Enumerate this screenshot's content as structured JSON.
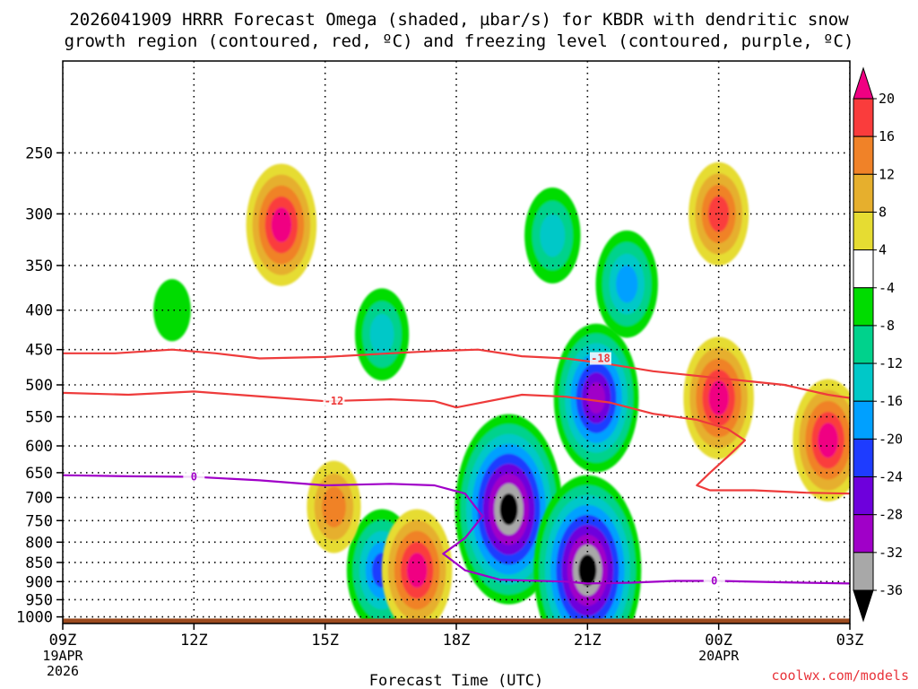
{
  "title": {
    "line1": "2026041909 HRRR Forecast Omega (shaded, µbar/s) for KBDR with dendritic snow",
    "line2": "growth region (contoured, red, ºC) and freezing level (contoured, purple, ºC)"
  },
  "credit": "coolwx.com/models",
  "chart_data": {
    "type": "heatmap",
    "title": "2026041909 HRRR Forecast Omega (shaded, µbar/s) for KBDR with dendritic snow growth region (contoured, red, ºC) and freezing level (contoured, purple, ºC)",
    "xlabel": "Forecast Time (UTC)",
    "ylabel": "",
    "x_range_hours": [
      0,
      18
    ],
    "x_ticks": [
      {
        "hour": 0,
        "label": "09Z",
        "date": "19APR",
        "year": "2026"
      },
      {
        "hour": 3,
        "label": "12Z"
      },
      {
        "hour": 6,
        "label": "15Z"
      },
      {
        "hour": 9,
        "label": "18Z"
      },
      {
        "hour": 12,
        "label": "21Z"
      },
      {
        "hour": 15,
        "label": "00Z",
        "date": "20APR"
      },
      {
        "hour": 18,
        "label": "03Z"
      }
    ],
    "y_axis": {
      "variable": "pressure_hPa",
      "range": [
        1020,
        190
      ],
      "ticks": [
        250,
        300,
        350,
        400,
        450,
        500,
        550,
        600,
        650,
        700,
        750,
        800,
        850,
        900,
        950,
        1000
      ]
    },
    "colorbar": {
      "levels": [
        -36,
        -32,
        -28,
        -24,
        -20,
        -16,
        -12,
        -8,
        -4,
        4,
        8,
        12,
        16,
        20
      ],
      "bins": [
        {
          "range": "< -36",
          "color": "#000000"
        },
        {
          "range": "-36 to -32",
          "color": "#a8a8a8"
        },
        {
          "range": "-32 to -28",
          "color": "#a000c8"
        },
        {
          "range": "-28 to -24",
          "color": "#6e00dc"
        },
        {
          "range": "-24 to -20",
          "color": "#1e3cff"
        },
        {
          "range": "-20 to -16",
          "color": "#00a0ff"
        },
        {
          "range": "-16 to -12",
          "color": "#00c8c8"
        },
        {
          "range": "-12 to -8",
          "color": "#00d28c"
        },
        {
          "range": "-8 to -4",
          "color": "#00dc00"
        },
        {
          "range": "-4 to 4",
          "color": "#ffffff"
        },
        {
          "range": "4 to 8",
          "color": "#e6dc32"
        },
        {
          "range": "8 to 12",
          "color": "#e6af2d"
        },
        {
          "range": "12 to 16",
          "color": "#f08228"
        },
        {
          "range": "16 to 20",
          "color": "#fa3c3c"
        },
        {
          "range": "> 20",
          "color": "#f00082"
        }
      ]
    },
    "omega_features": [
      {
        "name": "upward-core-19z-725mb",
        "hour": 10.2,
        "p": 725,
        "peak": -40
      },
      {
        "name": "upward-core-21z-870mb",
        "hour": 12.0,
        "p": 870,
        "peak": -40
      },
      {
        "name": "upward-area-21z-520mb",
        "hour": 12.2,
        "p": 520,
        "peak": -29
      },
      {
        "name": "upward-cell-16z-870mb",
        "hour": 7.3,
        "p": 870,
        "peak": -22
      },
      {
        "name": "upward-cell-16z-430mb",
        "hour": 7.3,
        "p": 430,
        "peak": -14
      },
      {
        "name": "upward-cell-20z-320mb",
        "hour": 11.2,
        "p": 320,
        "peak": -15
      },
      {
        "name": "upward-cell-22z-370mb",
        "hour": 12.9,
        "p": 370,
        "peak": -18
      },
      {
        "name": "upward-area-12z-400mb",
        "hour": 2.5,
        "p": 400,
        "peak": -6
      },
      {
        "name": "sinking-core-14z-310mb",
        "hour": 5.0,
        "p": 310,
        "peak": 22
      },
      {
        "name": "sinking-core-17z-870mb",
        "hour": 8.1,
        "p": 870,
        "peak": 22
      },
      {
        "name": "sinking-core-00z-520mb",
        "hour": 15.0,
        "p": 520,
        "peak": 22
      },
      {
        "name": "sinking-core-02z-590mb",
        "hour": 17.5,
        "p": 590,
        "peak": 22
      },
      {
        "name": "sinking-area-00z-300mb",
        "hour": 15.0,
        "p": 300,
        "peak": 17
      },
      {
        "name": "sinking-area-15z-720mb",
        "hour": 6.2,
        "p": 720,
        "peak": 14
      }
    ],
    "contours": [
      {
        "name": "dgz-minus-18",
        "color": "#ee3b3b",
        "label": "-18",
        "points": [
          [
            0,
            455
          ],
          [
            1.2,
            455
          ],
          [
            2.5,
            450
          ],
          [
            3.5,
            455
          ],
          [
            4.5,
            462
          ],
          [
            6,
            460
          ],
          [
            7.5,
            455
          ],
          [
            8.5,
            452
          ],
          [
            9.5,
            450
          ],
          [
            10.5,
            459
          ],
          [
            11.5,
            462
          ],
          [
            12.5,
            470
          ],
          [
            13.5,
            480
          ],
          [
            15,
            490
          ],
          [
            16.5,
            500
          ],
          [
            17.5,
            515
          ],
          [
            18,
            520
          ]
        ]
      },
      {
        "name": "dgz-minus-12",
        "color": "#ee3b3b",
        "label": "-12",
        "points": [
          [
            0,
            512
          ],
          [
            1.5,
            515
          ],
          [
            3,
            510
          ],
          [
            4,
            515
          ],
          [
            5,
            520
          ],
          [
            6,
            525
          ],
          [
            7.5,
            522
          ],
          [
            8.5,
            525
          ],
          [
            9,
            535
          ],
          [
            10.5,
            515
          ],
          [
            11.5,
            518
          ],
          [
            12.5,
            527
          ],
          [
            13.5,
            545
          ],
          [
            14.5,
            555
          ],
          [
            15.2,
            570
          ],
          [
            15.6,
            590
          ],
          [
            15.2,
            620
          ],
          [
            14.8,
            650
          ],
          [
            14.5,
            675
          ],
          [
            14.8,
            685
          ],
          [
            15.8,
            685
          ],
          [
            17,
            690
          ],
          [
            18,
            692
          ]
        ]
      },
      {
        "name": "freezing-level-0",
        "color": "#a000c8",
        "label": "0",
        "points": [
          [
            0,
            655
          ],
          [
            1.5,
            657
          ],
          [
            3,
            658
          ],
          [
            4.5,
            665
          ],
          [
            6,
            675
          ],
          [
            7.5,
            672
          ],
          [
            8.5,
            675
          ],
          [
            9.2,
            692
          ],
          [
            9.6,
            740
          ],
          [
            9.2,
            790
          ],
          [
            8.7,
            828
          ],
          [
            9.2,
            870
          ],
          [
            10,
            895
          ],
          [
            11.5,
            900
          ],
          [
            12,
            905
          ],
          [
            13,
            903
          ],
          [
            14,
            898
          ],
          [
            15,
            898
          ],
          [
            16.5,
            902
          ],
          [
            18,
            905
          ]
        ]
      }
    ],
    "contour_labels": [
      {
        "text": "-18",
        "hour": 12.3,
        "p": 462
      },
      {
        "text": "-12",
        "hour": 6.2,
        "p": 525
      },
      {
        "text": "0",
        "hour": 3.0,
        "p": 658
      },
      {
        "text": "0",
        "hour": 14.9,
        "p": 898
      }
    ],
    "terrain_below_hPa": 1005
  }
}
